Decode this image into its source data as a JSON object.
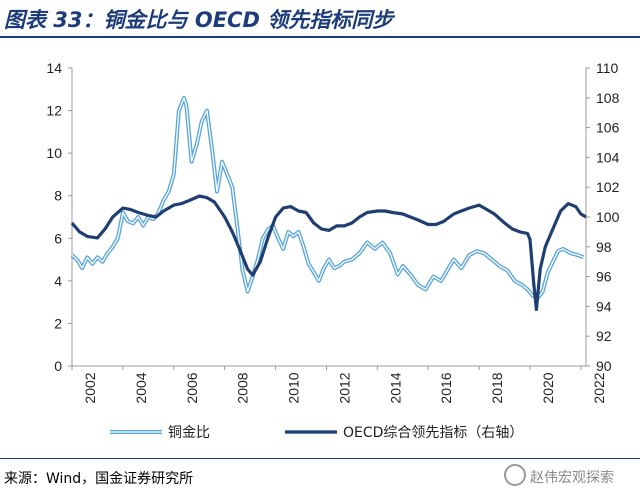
{
  "header": {
    "title": "图表 33：铜金比与 OECD 领先指标同步"
  },
  "footer": {
    "source": "来源：Wind，国金证券研究所",
    "watermark": "赵伟宏观探索",
    "watermark_icon": "wechat-icon"
  },
  "chart_data": {
    "type": "line",
    "x_range": [
      2002,
      2022.2
    ],
    "x_ticks": [
      "2002",
      "2004",
      "2006",
      "2008",
      "2010",
      "2012",
      "2014",
      "2016",
      "2018",
      "2020",
      "2022"
    ],
    "y_left": {
      "range": [
        0,
        14
      ],
      "ticks": [
        "0",
        "2",
        "4",
        "6",
        "8",
        "10",
        "12",
        "14"
      ]
    },
    "y_right": {
      "range": [
        90,
        110
      ],
      "ticks": [
        "90",
        "92",
        "94",
        "96",
        "98",
        "100",
        "102",
        "104",
        "106",
        "108",
        "110"
      ]
    },
    "grid": false,
    "legend_position": "bottom",
    "series": [
      {
        "name": "铜金比",
        "axis": "left",
        "color": "#5aa6dc",
        "style": "double-line",
        "points": [
          [
            2002.0,
            5.2
          ],
          [
            2002.2,
            5.0
          ],
          [
            2002.4,
            4.6
          ],
          [
            2002.6,
            5.1
          ],
          [
            2002.8,
            4.8
          ],
          [
            2003.0,
            5.1
          ],
          [
            2003.2,
            4.9
          ],
          [
            2003.4,
            5.3
          ],
          [
            2003.6,
            5.6
          ],
          [
            2003.8,
            6.0
          ],
          [
            2004.0,
            7.2
          ],
          [
            2004.2,
            6.8
          ],
          [
            2004.4,
            6.7
          ],
          [
            2004.6,
            7.0
          ],
          [
            2004.8,
            6.6
          ],
          [
            2005.0,
            7.0
          ],
          [
            2005.2,
            6.9
          ],
          [
            2005.4,
            7.2
          ],
          [
            2005.6,
            7.8
          ],
          [
            2005.8,
            8.2
          ],
          [
            2006.0,
            9.0
          ],
          [
            2006.2,
            12.0
          ],
          [
            2006.4,
            12.6
          ],
          [
            2006.5,
            12.2
          ],
          [
            2006.7,
            9.6
          ],
          [
            2006.9,
            10.4
          ],
          [
            2007.1,
            11.5
          ],
          [
            2007.3,
            12.0
          ],
          [
            2007.5,
            10.2
          ],
          [
            2007.7,
            8.2
          ],
          [
            2007.9,
            9.6
          ],
          [
            2008.1,
            9.0
          ],
          [
            2008.3,
            8.4
          ],
          [
            2008.5,
            6.5
          ],
          [
            2008.7,
            4.5
          ],
          [
            2008.9,
            3.5
          ],
          [
            2009.1,
            4.2
          ],
          [
            2009.3,
            5.0
          ],
          [
            2009.5,
            6.0
          ],
          [
            2009.7,
            6.4
          ],
          [
            2009.9,
            6.6
          ],
          [
            2010.1,
            6.0
          ],
          [
            2010.3,
            5.5
          ],
          [
            2010.5,
            6.3
          ],
          [
            2010.7,
            6.1
          ],
          [
            2010.9,
            6.3
          ],
          [
            2011.1,
            5.6
          ],
          [
            2011.3,
            4.8
          ],
          [
            2011.5,
            4.4
          ],
          [
            2011.7,
            4.0
          ],
          [
            2011.9,
            4.6
          ],
          [
            2012.1,
            5.0
          ],
          [
            2012.3,
            4.6
          ],
          [
            2012.5,
            4.7
          ],
          [
            2012.7,
            4.9
          ],
          [
            2013.0,
            5.0
          ],
          [
            2013.3,
            5.3
          ],
          [
            2013.6,
            5.8
          ],
          [
            2013.9,
            5.5
          ],
          [
            2014.2,
            5.8
          ],
          [
            2014.5,
            5.3
          ],
          [
            2014.8,
            4.3
          ],
          [
            2015.0,
            4.7
          ],
          [
            2015.3,
            4.3
          ],
          [
            2015.6,
            3.8
          ],
          [
            2015.9,
            3.6
          ],
          [
            2016.2,
            4.2
          ],
          [
            2016.5,
            4.0
          ],
          [
            2016.8,
            4.6
          ],
          [
            2017.0,
            5.0
          ],
          [
            2017.3,
            4.6
          ],
          [
            2017.6,
            5.2
          ],
          [
            2017.9,
            5.4
          ],
          [
            2018.2,
            5.3
          ],
          [
            2018.5,
            5.0
          ],
          [
            2018.8,
            4.7
          ],
          [
            2019.1,
            4.5
          ],
          [
            2019.4,
            4.0
          ],
          [
            2019.7,
            3.8
          ],
          [
            2019.9,
            3.6
          ],
          [
            2020.1,
            3.3
          ],
          [
            2020.3,
            3.2
          ],
          [
            2020.5,
            3.5
          ],
          [
            2020.7,
            4.4
          ],
          [
            2020.9,
            4.9
          ],
          [
            2021.1,
            5.4
          ],
          [
            2021.3,
            5.5
          ],
          [
            2021.6,
            5.3
          ],
          [
            2021.9,
            5.2
          ],
          [
            2022.1,
            5.1
          ]
        ]
      },
      {
        "name": "OECD综合领先指标（右轴）",
        "axis": "right",
        "color": "#1f3f73",
        "style": "solid",
        "points": [
          [
            2002.0,
            99.6
          ],
          [
            2002.3,
            99.0
          ],
          [
            2002.6,
            98.7
          ],
          [
            2003.0,
            98.6
          ],
          [
            2003.3,
            99.2
          ],
          [
            2003.6,
            100.0
          ],
          [
            2004.0,
            100.6
          ],
          [
            2004.3,
            100.5
          ],
          [
            2004.6,
            100.3
          ],
          [
            2005.0,
            100.1
          ],
          [
            2005.3,
            100.0
          ],
          [
            2005.6,
            100.4
          ],
          [
            2006.0,
            100.8
          ],
          [
            2006.3,
            100.9
          ],
          [
            2006.6,
            101.1
          ],
          [
            2007.0,
            101.4
          ],
          [
            2007.3,
            101.3
          ],
          [
            2007.6,
            101.0
          ],
          [
            2008.0,
            100.0
          ],
          [
            2008.3,
            99.0
          ],
          [
            2008.6,
            97.8
          ],
          [
            2008.9,
            96.5
          ],
          [
            2009.1,
            96.1
          ],
          [
            2009.4,
            97.0
          ],
          [
            2009.7,
            98.6
          ],
          [
            2010.0,
            100.0
          ],
          [
            2010.3,
            100.6
          ],
          [
            2010.6,
            100.7
          ],
          [
            2010.9,
            100.4
          ],
          [
            2011.2,
            100.3
          ],
          [
            2011.5,
            99.6
          ],
          [
            2011.8,
            99.2
          ],
          [
            2012.1,
            99.1
          ],
          [
            2012.4,
            99.4
          ],
          [
            2012.7,
            99.4
          ],
          [
            2013.0,
            99.6
          ],
          [
            2013.3,
            100.0
          ],
          [
            2013.6,
            100.3
          ],
          [
            2014.0,
            100.4
          ],
          [
            2014.3,
            100.4
          ],
          [
            2014.6,
            100.3
          ],
          [
            2015.0,
            100.2
          ],
          [
            2015.3,
            100.0
          ],
          [
            2015.6,
            99.8
          ],
          [
            2016.0,
            99.5
          ],
          [
            2016.3,
            99.5
          ],
          [
            2016.6,
            99.7
          ],
          [
            2017.0,
            100.2
          ],
          [
            2017.3,
            100.4
          ],
          [
            2017.6,
            100.6
          ],
          [
            2018.0,
            100.8
          ],
          [
            2018.3,
            100.5
          ],
          [
            2018.6,
            100.2
          ],
          [
            2019.0,
            99.6
          ],
          [
            2019.3,
            99.2
          ],
          [
            2019.6,
            99.0
          ],
          [
            2019.9,
            98.9
          ],
          [
            2020.0,
            98.5
          ],
          [
            2020.15,
            95.5
          ],
          [
            2020.25,
            93.8
          ],
          [
            2020.4,
            96.5
          ],
          [
            2020.6,
            98.0
          ],
          [
            2020.9,
            99.2
          ],
          [
            2021.2,
            100.4
          ],
          [
            2021.5,
            100.9
          ],
          [
            2021.8,
            100.7
          ],
          [
            2022.0,
            100.2
          ],
          [
            2022.2,
            100.0
          ]
        ]
      }
    ]
  }
}
